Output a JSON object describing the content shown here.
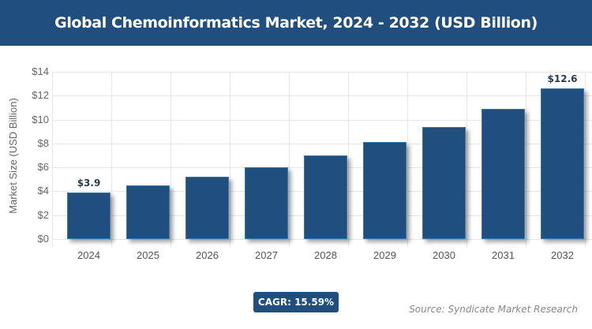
{
  "header": {
    "title": "Global Chemoinformatics Market, 2024 - 2032 (USD Billion)"
  },
  "chart_data": {
    "type": "bar",
    "title": "Global Chemoinformatics Market, 2024 - 2032 (USD Billion)",
    "xlabel": "",
    "ylabel": "Market Size (USD Billion)",
    "categories": [
      "2024",
      "2025",
      "2026",
      "2027",
      "2028",
      "2029",
      "2030",
      "2031",
      "2032"
    ],
    "values": [
      3.9,
      4.5,
      5.2,
      6.0,
      7.0,
      8.1,
      9.4,
      10.9,
      12.6
    ],
    "data_labels": {
      "2024": "$3.9",
      "2032": "$12.6"
    },
    "ylim": [
      0,
      14
    ],
    "yticks": [
      "$0",
      "$2",
      "$4",
      "$6",
      "$8",
      "$10",
      "$12",
      "$14"
    ],
    "grid": true,
    "bar_color": "#1f4e7f"
  },
  "footer": {
    "cagr": "CAGR: 15.59%",
    "source": "Source: Syndicate Market Research"
  }
}
